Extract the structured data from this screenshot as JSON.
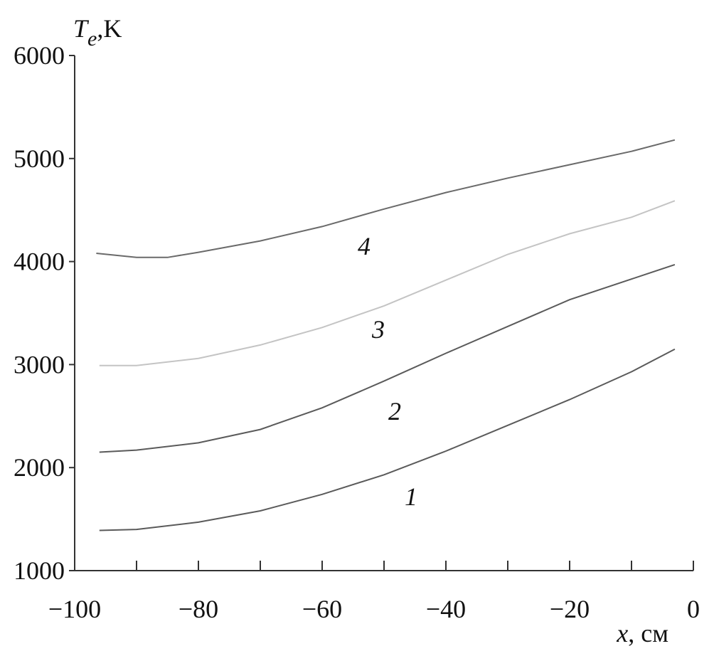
{
  "chart_data": {
    "type": "line",
    "ylabel": {
      "symbol": "T",
      "subscript": "e",
      "unit": ",K"
    },
    "xlabel": {
      "symbol": "x",
      "unit": ", см"
    },
    "xlim": [
      -100,
      0
    ],
    "ylim": [
      1000,
      6000
    ],
    "xticks": [
      {
        "value": -100,
        "label": "−100"
      },
      {
        "value": -80,
        "label": "−80"
      },
      {
        "value": -60,
        "label": "−60"
      },
      {
        "value": -40,
        "label": "−40"
      },
      {
        "value": -20,
        "label": "−20"
      },
      0
    ],
    "xminorticks": [
      -90,
      -70,
      -50,
      -30,
      -10
    ],
    "yticks": [
      1000,
      2000,
      3000,
      4000,
      5000,
      6000
    ],
    "series": [
      {
        "name": "1",
        "color": "#5a5a5a",
        "x": [
          -96,
          -90,
          -80,
          -70,
          -60,
          -50,
          -40,
          -30,
          -20,
          -10,
          -3
        ],
        "values": [
          1390,
          1400,
          1470,
          1580,
          1740,
          1930,
          2160,
          2410,
          2660,
          2930,
          3150
        ]
      },
      {
        "name": "2",
        "color": "#5a5a5a",
        "x": [
          -96,
          -90,
          -80,
          -70,
          -60,
          -50,
          -40,
          -30,
          -20,
          -10,
          -3
        ],
        "values": [
          2150,
          2170,
          2240,
          2370,
          2580,
          2840,
          3110,
          3370,
          3630,
          3830,
          3970
        ]
      },
      {
        "name": "3",
        "color": "#c4c4c4",
        "x": [
          -96,
          -90,
          -80,
          -70,
          -60,
          -50,
          -40,
          -30,
          -20,
          -10,
          -3
        ],
        "values": [
          2990,
          2990,
          3060,
          3190,
          3360,
          3570,
          3820,
          4070,
          4270,
          4430,
          4590
        ]
      },
      {
        "name": "4",
        "color": "#6a6a6a",
        "x": [
          -96.5,
          -90,
          -85,
          -80,
          -70,
          -60,
          -50,
          -40,
          -30,
          -20,
          -10,
          -3
        ],
        "values": [
          4080,
          4040,
          4040,
          4090,
          4200,
          4340,
          4510,
          4670,
          4810,
          4940,
          5070,
          5180
        ]
      }
    ]
  }
}
